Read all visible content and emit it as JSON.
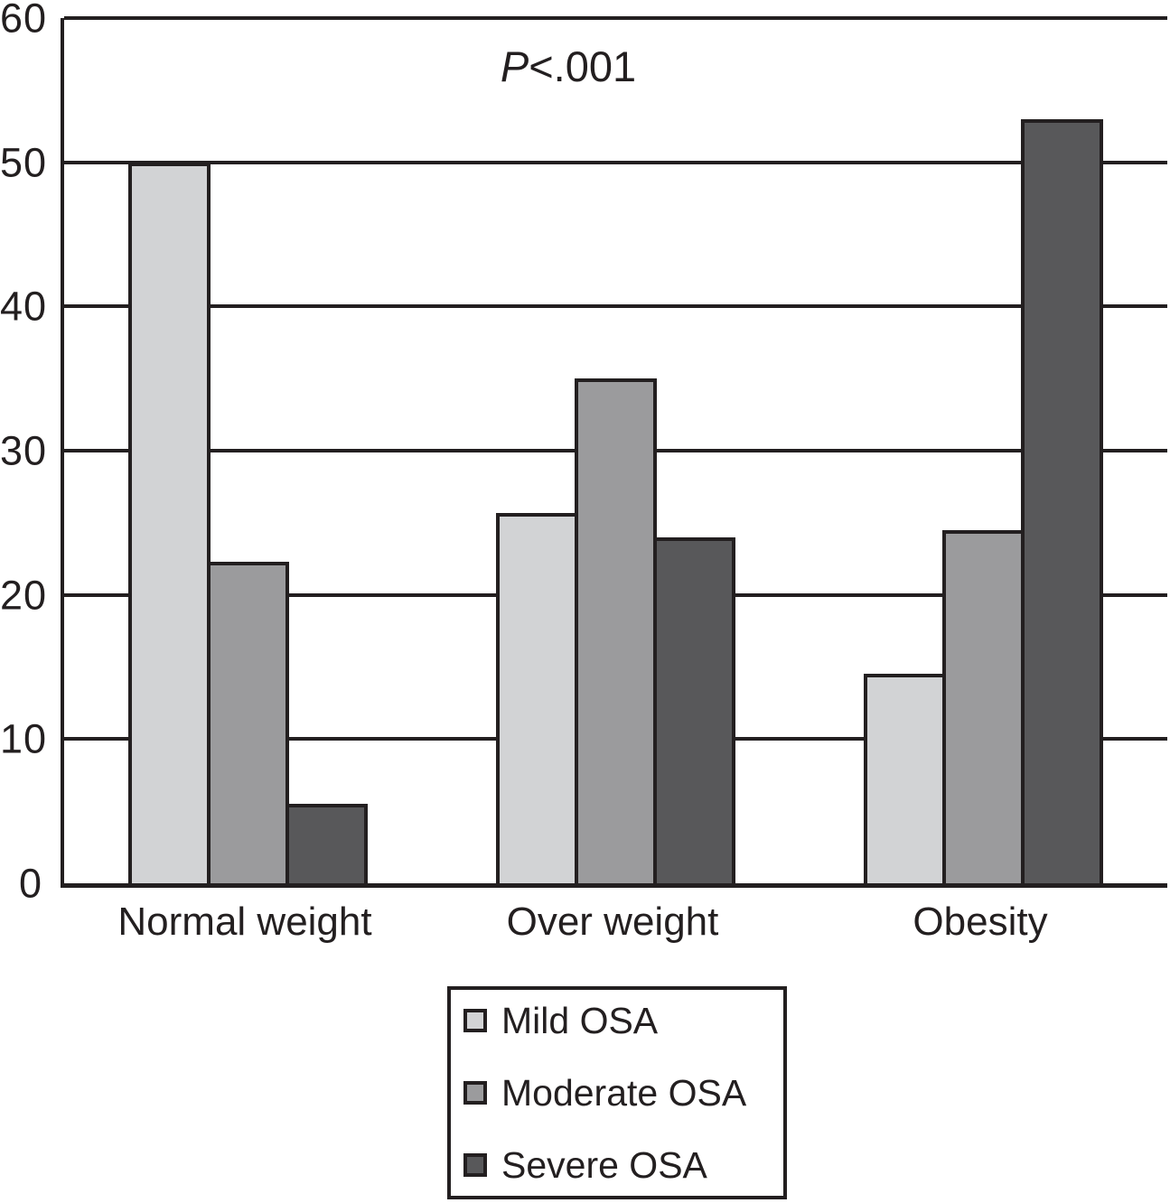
{
  "figure": {
    "annotation_prefix": "P",
    "annotation_suffix": "<.001"
  },
  "chart_data": {
    "type": "bar",
    "title": "",
    "annotation": "P<.001",
    "categories": [
      "Normal weight",
      "Over weight",
      "Obesity"
    ],
    "series": [
      {
        "name": "Mild OSA",
        "color": "#d2d3d5",
        "values": [
          50,
          25.7,
          14.5
        ]
      },
      {
        "name": "Moderate OSA",
        "color": "#9b9b9d",
        "values": [
          22.3,
          35,
          24.5
        ]
      },
      {
        "name": "Severe OSA",
        "color": "#58585a",
        "values": [
          5.5,
          24,
          53
        ]
      }
    ],
    "xlabel": "",
    "ylabel": "",
    "ylim": [
      0,
      60
    ],
    "yticks": [
      0,
      10,
      20,
      30,
      40,
      50,
      60
    ],
    "grid": true,
    "gridline_color": "#231f20",
    "legend_position": "bottom"
  }
}
